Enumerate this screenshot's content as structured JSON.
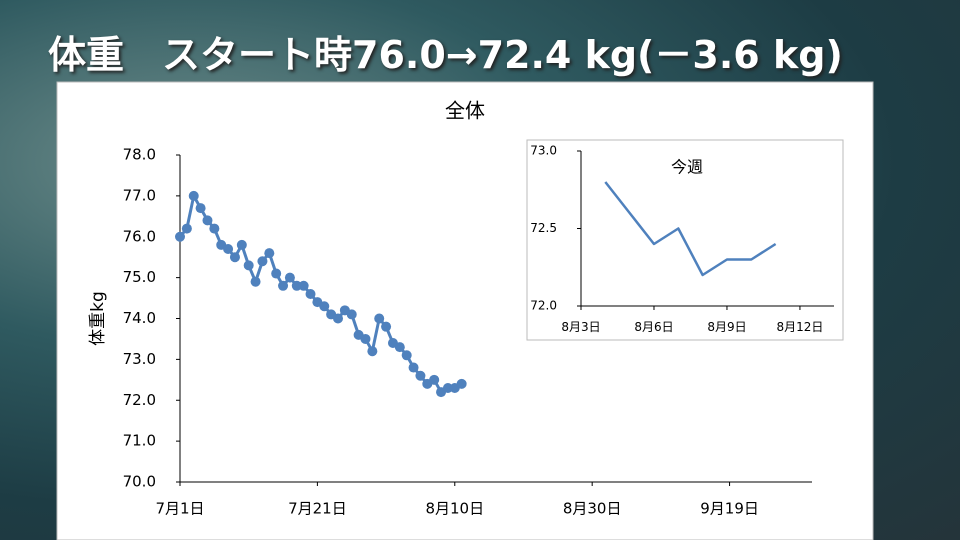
{
  "header": {
    "title": "体重　スタート時76.0→72.4 kg(－3.6 kg)"
  },
  "chart_data": [
    {
      "type": "line",
      "title": "全体",
      "y_label": "体重kg",
      "x": [
        0,
        1,
        2,
        3,
        4,
        5,
        6,
        7,
        8,
        9,
        10,
        11,
        12,
        13,
        14,
        15,
        16,
        17,
        18,
        19,
        20,
        21,
        22,
        23,
        24,
        25,
        26,
        27,
        28,
        29,
        30,
        31,
        32,
        33,
        34,
        35,
        36,
        37,
        38,
        39,
        40,
        41
      ],
      "series": [
        {
          "name": "体重",
          "color": "#4f81bd",
          "values": [
            76.0,
            76.2,
            77.0,
            76.7,
            76.4,
            76.2,
            75.8,
            75.7,
            75.5,
            75.8,
            75.3,
            74.9,
            75.4,
            75.6,
            75.1,
            74.8,
            75.0,
            74.8,
            74.8,
            74.6,
            74.4,
            74.3,
            74.1,
            74.0,
            74.2,
            74.1,
            73.6,
            73.5,
            73.2,
            74.0,
            73.8,
            73.4,
            73.3,
            73.1,
            72.8,
            72.6,
            72.4,
            72.5,
            72.2,
            72.3,
            72.3,
            72.4
          ]
        }
      ],
      "markers": true,
      "xlim": [
        0,
        92
      ],
      "xticks": [
        {
          "value": 0,
          "label": "7月1日"
        },
        {
          "value": 20,
          "label": "7月21日"
        },
        {
          "value": 40,
          "label": "8月10日"
        },
        {
          "value": 60,
          "label": "8月30日"
        },
        {
          "value": 80,
          "label": "9月19日"
        }
      ],
      "ylim": [
        70,
        78
      ],
      "yticks": [
        {
          "value": 70,
          "label": "70.0"
        },
        {
          "value": 71,
          "label": "71.0"
        },
        {
          "value": 72,
          "label": "72.0"
        },
        {
          "value": 73,
          "label": "73.0"
        },
        {
          "value": 74,
          "label": "74.0"
        },
        {
          "value": 75,
          "label": "75.0"
        },
        {
          "value": 76,
          "label": "76.0"
        },
        {
          "value": 77,
          "label": "77.0"
        },
        {
          "value": 78,
          "label": "78.0"
        }
      ]
    },
    {
      "type": "line",
      "title": "今週",
      "x": [
        4,
        5,
        6,
        7,
        8,
        9,
        10,
        11
      ],
      "series": [
        {
          "name": "体重",
          "color": "#4f81bd",
          "values": [
            72.8,
            72.6,
            72.4,
            72.5,
            72.2,
            72.3,
            72.3,
            72.4
          ]
        }
      ],
      "markers": false,
      "xlim": [
        3,
        13.4
      ],
      "xticks": [
        {
          "value": 3,
          "label": "8月3日"
        },
        {
          "value": 6,
          "label": "8月6日"
        },
        {
          "value": 9,
          "label": "8月9日"
        },
        {
          "value": 12,
          "label": "8月12日"
        }
      ],
      "ylim": [
        72,
        73
      ],
      "yticks": [
        {
          "value": 72,
          "label": "72.0"
        },
        {
          "value": 72.5,
          "label": "72.5"
        },
        {
          "value": 73,
          "label": "73.0"
        }
      ]
    }
  ]
}
